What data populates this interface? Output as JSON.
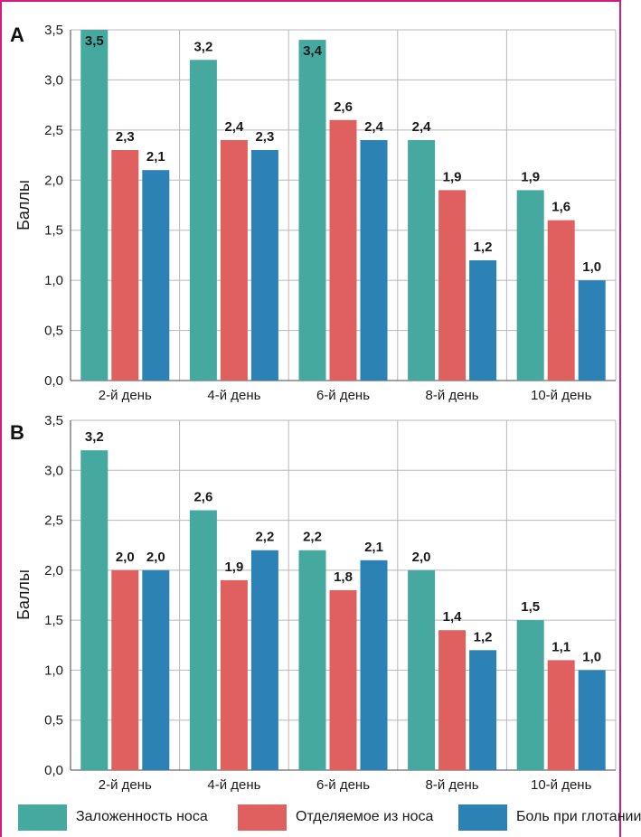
{
  "chart_data": [
    {
      "panel": "A",
      "type": "bar",
      "categories": [
        "2-й день",
        "4-й день",
        "6-й день",
        "8-й день",
        "10-й день"
      ],
      "ylabel": "Баллы",
      "ylim": [
        0,
        3.5
      ],
      "yticks": [
        "0,0",
        "0,5",
        "1,0",
        "1,5",
        "2,0",
        "2,5",
        "3,0",
        "3,5"
      ],
      "grid": true,
      "series": [
        {
          "name": "Заложенность носа",
          "values": [
            3.5,
            3.2,
            3.4,
            2.4,
            1.9
          ],
          "labels": [
            "3,5",
            "3,2",
            "3,4",
            "2,4",
            "1,9"
          ]
        },
        {
          "name": "Отделяемое из носа",
          "values": [
            2.3,
            2.4,
            2.6,
            1.9,
            1.6
          ],
          "labels": [
            "2,3",
            "2,4",
            "2,6",
            "1,9",
            "1,6"
          ]
        },
        {
          "name": "Боль при глотании",
          "values": [
            2.1,
            2.3,
            2.4,
            1.2,
            1.0
          ],
          "labels": [
            "2,1",
            "2,3",
            "2,4",
            "1,2",
            "1,0"
          ]
        }
      ]
    },
    {
      "panel": "B",
      "type": "bar",
      "categories": [
        "2-й день",
        "4-й день",
        "6-й день",
        "8-й день",
        "10-й день"
      ],
      "ylabel": "Баллы",
      "ylim": [
        0,
        3.5
      ],
      "yticks": [
        "0,0",
        "0,5",
        "1,0",
        "1,5",
        "2,0",
        "2,5",
        "3,0",
        "3,5"
      ],
      "grid": true,
      "series": [
        {
          "name": "Заложенность носа",
          "values": [
            3.2,
            2.6,
            2.2,
            2.0,
            1.5
          ],
          "labels": [
            "3,2",
            "2,6",
            "2,2",
            "2,0",
            "1,5"
          ]
        },
        {
          "name": "Отделяемое из носа",
          "values": [
            2.0,
            1.9,
            1.8,
            1.4,
            1.1
          ],
          "labels": [
            "2,0",
            "1,9",
            "1,8",
            "1,4",
            "1,1"
          ]
        },
        {
          "name": "Боль при глотании",
          "values": [
            2.0,
            2.2,
            2.1,
            1.2,
            1.0
          ],
          "labels": [
            "2,0",
            "2,2",
            "2,1",
            "1,2",
            "1,0"
          ]
        }
      ]
    }
  ],
  "legend": {
    "placement": "bottom",
    "items": [
      {
        "label": "Заложенность носа",
        "color": "#45a99f"
      },
      {
        "label": "Отделяемое из носа",
        "color": "#e0605f"
      },
      {
        "label": "Боль при глотании",
        "color": "#2c82b5"
      }
    ]
  },
  "colors": {
    "series": [
      "#45a99f",
      "#e0605f",
      "#2c82b5"
    ],
    "frame": "#d6197f",
    "grid": "#b8b8b8"
  }
}
